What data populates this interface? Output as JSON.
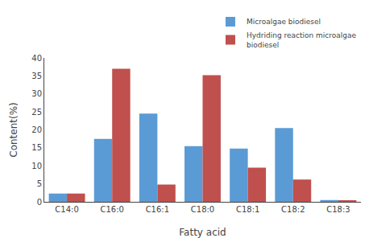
{
  "chart_data": {
    "type": "bar",
    "categories": [
      "C14:0",
      "C16:0",
      "C16:1",
      "C18:0",
      "C18:1",
      "C18:2",
      "C18:3"
    ],
    "series": [
      {
        "name": "Microalgae biodiesel",
        "color": "#5B9BD5",
        "values": [
          2.3,
          17.5,
          24.5,
          15.5,
          14.8,
          20.5,
          0.5
        ]
      },
      {
        "name": "Hydriding reaction microalgae\nbiodiesel",
        "color": "#C0504D",
        "values": [
          2.3,
          37.0,
          4.8,
          35.2,
          9.5,
          6.2,
          0.3
        ]
      }
    ],
    "xlabel": "Fatty acid",
    "ylabel": "Content(%)",
    "ylim": [
      0,
      40
    ],
    "yticks": [
      0,
      5,
      10,
      15,
      20,
      25,
      30,
      35,
      40
    ],
    "grid": false,
    "legend": "upper right"
  }
}
